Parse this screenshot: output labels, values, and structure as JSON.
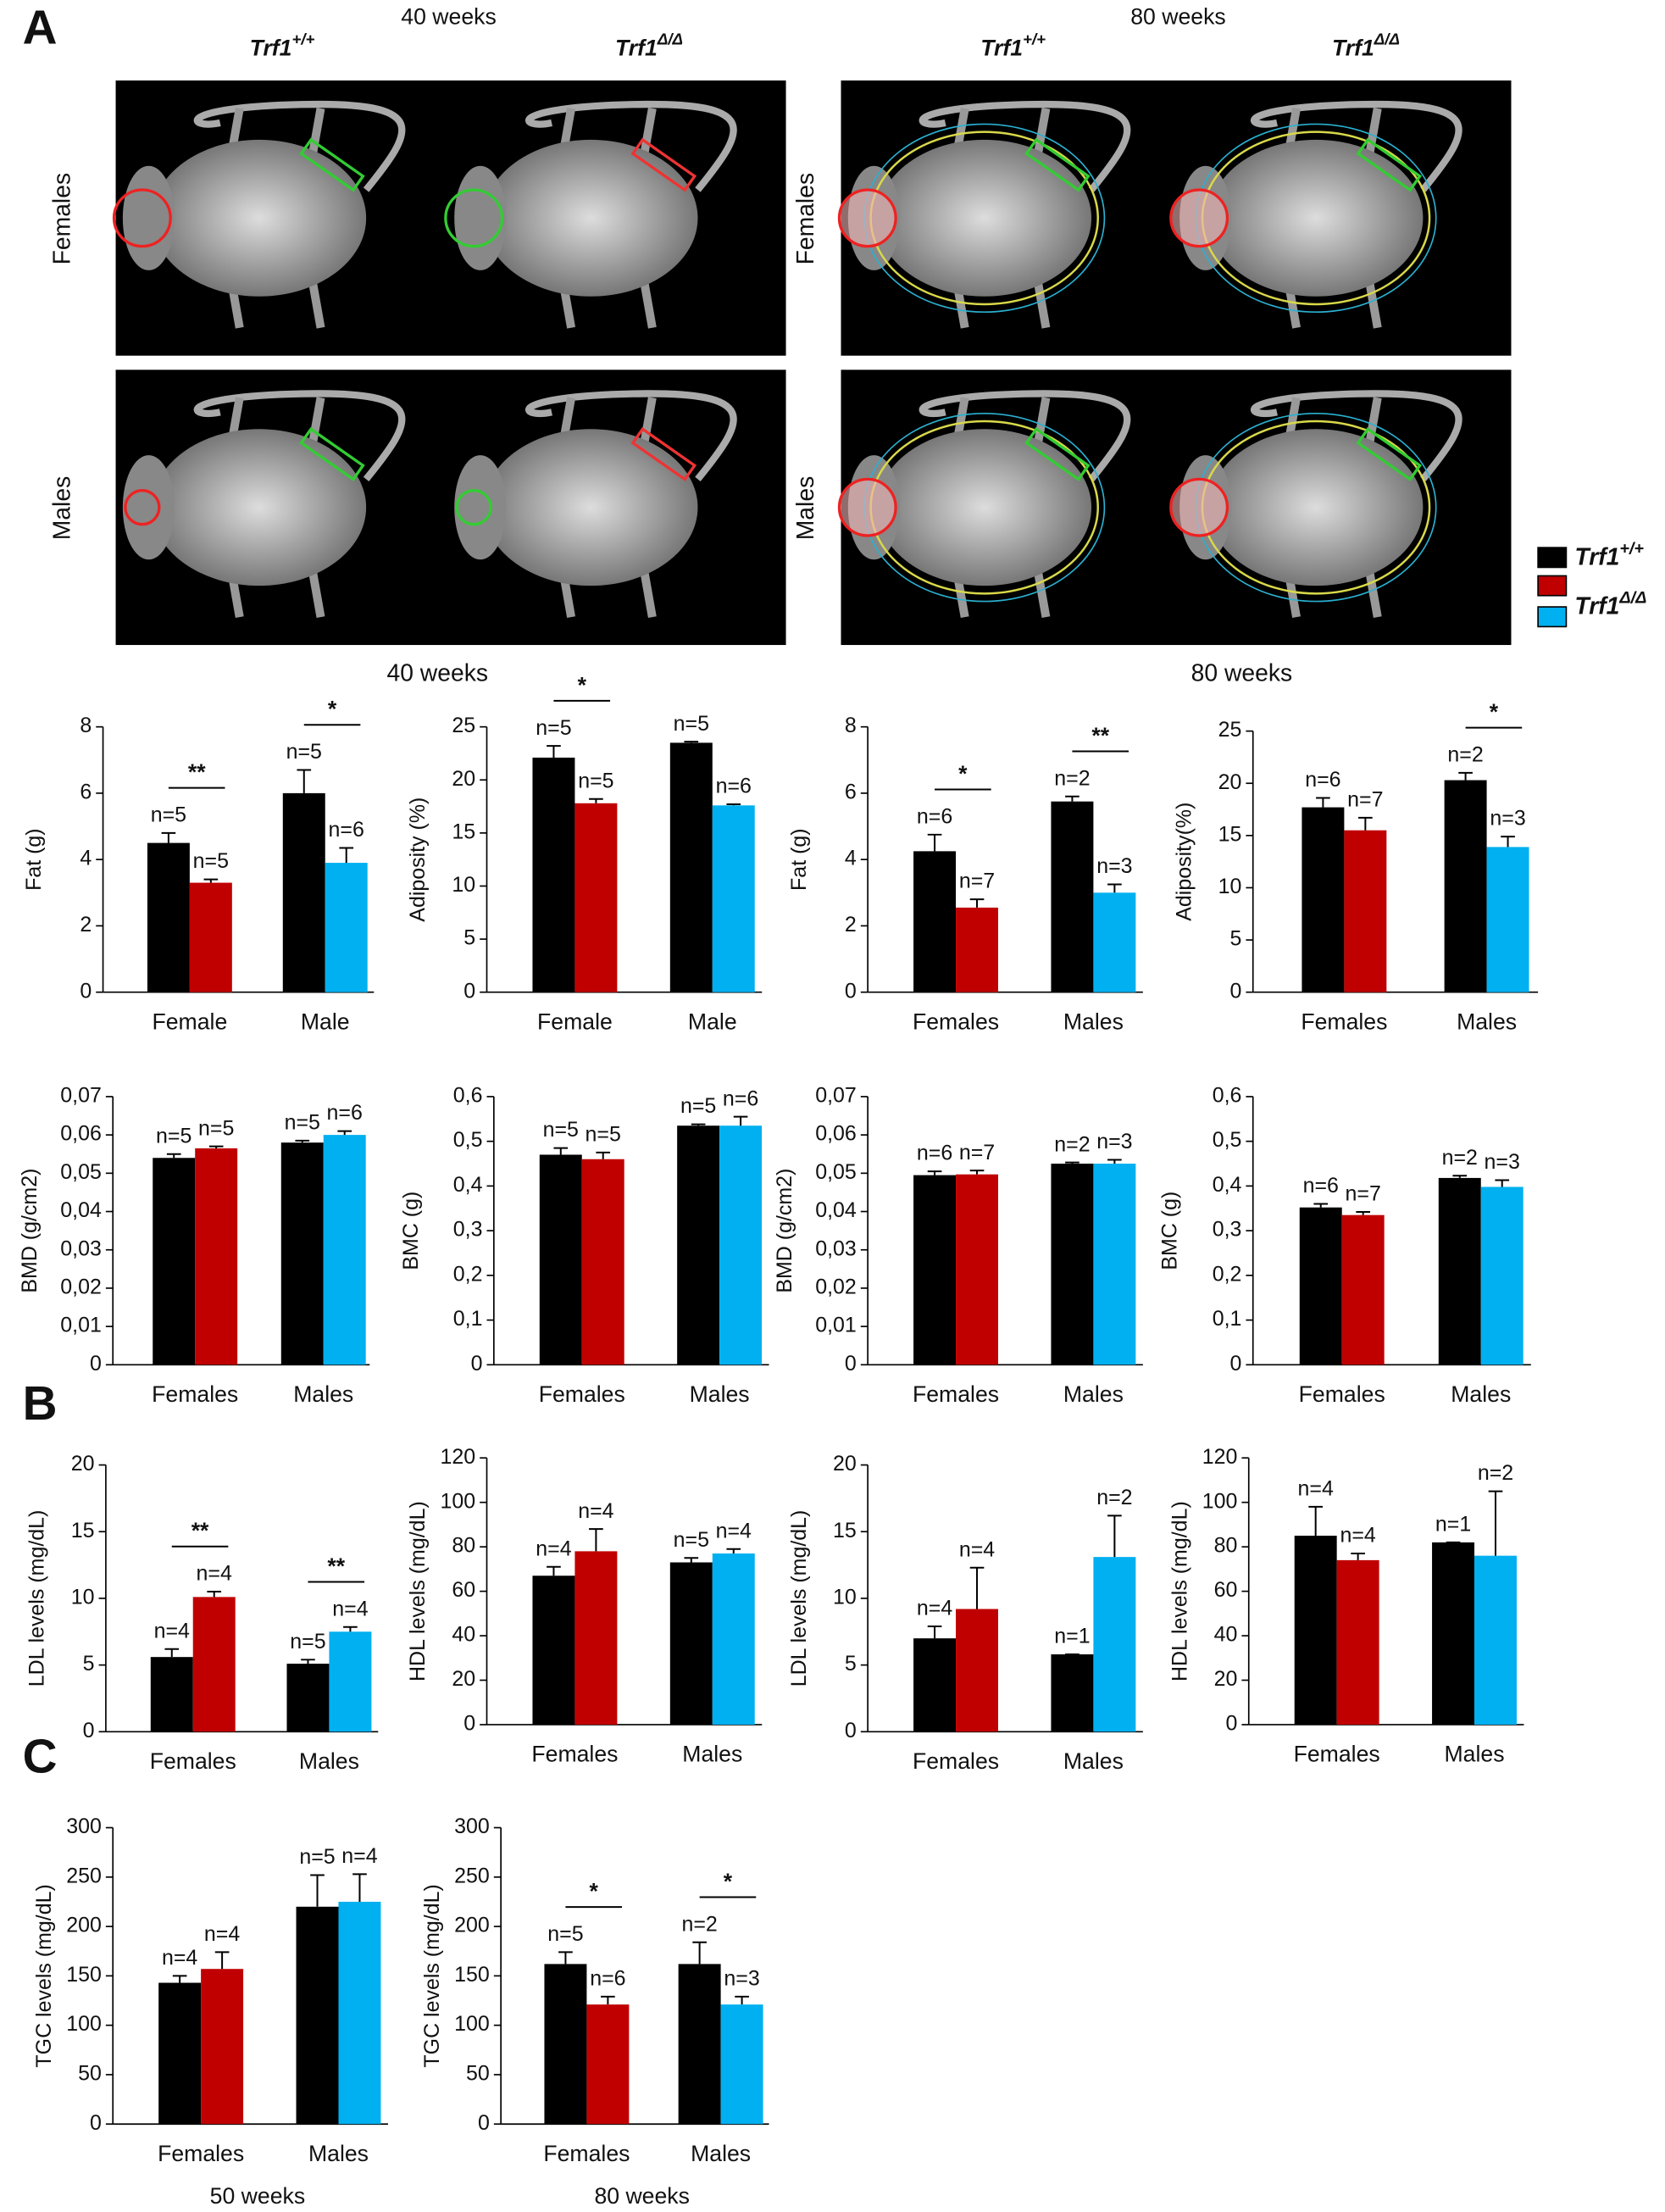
{
  "panel_labels": [
    "A",
    "B",
    "C"
  ],
  "images": {
    "ages": [
      "40 weeks",
      "80 weeks"
    ],
    "genotypes": [
      {
        "gene": "Trf1",
        "genotype": "+/+"
      },
      {
        "gene": "Trf1",
        "genotype": "Δ/Δ"
      }
    ],
    "rows": [
      "Females",
      "Males"
    ]
  },
  "legend": [
    {
      "gene": "Trf1",
      "genotype": "+/+",
      "colors": [
        "#000000"
      ]
    },
    {
      "gene": "Trf1",
      "genotype": "Δ/Δ",
      "colors": [
        "#c00000",
        "#00b0f0"
      ]
    }
  ],
  "headers": [
    "40 weeks",
    "80 weeks"
  ],
  "chart_data": [
    {
      "type": "bar",
      "ylabel": "Fat (g)",
      "categories": [
        "Female",
        "Male"
      ],
      "ylim": [
        0,
        8
      ],
      "yticks": [
        0,
        2,
        4,
        6,
        8
      ],
      "series": [
        {
          "colors": [
            "#000000",
            "#000000"
          ],
          "values": [
            4.5,
            6.0
          ],
          "errors": [
            0.3,
            0.7
          ],
          "n_labels": [
            "n=5",
            "n=5"
          ]
        },
        {
          "colors": [
            "#c00000",
            "#00b0f0"
          ],
          "values": [
            3.3,
            3.9
          ],
          "errors": [
            0.1,
            0.45
          ],
          "n_labels": [
            "n=5",
            "n=6"
          ]
        }
      ],
      "significance": [
        {
          "category": 0,
          "label": "**"
        },
        {
          "category": 1,
          "label": "*"
        }
      ]
    },
    {
      "type": "bar",
      "ylabel": "Adiposity (%)",
      "categories": [
        "Female",
        "Male"
      ],
      "ylim": [
        0,
        25
      ],
      "yticks": [
        0,
        5,
        10,
        15,
        20,
        25
      ],
      "series": [
        {
          "colors": [
            "#000000",
            "#000000"
          ],
          "values": [
            22.1,
            23.5
          ],
          "errors": [
            1.1,
            0.1
          ],
          "n_labels": [
            "n=5",
            "n=5"
          ]
        },
        {
          "colors": [
            "#c00000",
            "#00b0f0"
          ],
          "values": [
            17.8,
            17.6
          ],
          "errors": [
            0.4,
            0.1
          ],
          "n_labels": [
            "n=5",
            "n=6"
          ]
        }
      ],
      "significance": [
        {
          "category": 0,
          "label": "*"
        }
      ]
    },
    {
      "type": "bar",
      "ylabel": "Fat (g)",
      "categories": [
        "Females",
        "Males"
      ],
      "ylim": [
        0,
        8
      ],
      "yticks": [
        0,
        2,
        4,
        6,
        8
      ],
      "series": [
        {
          "colors": [
            "#000000",
            "#000000"
          ],
          "values": [
            4.25,
            5.75
          ],
          "errors": [
            0.5,
            0.15
          ],
          "n_labels": [
            "n=6",
            "n=2"
          ]
        },
        {
          "colors": [
            "#c00000",
            "#00b0f0"
          ],
          "values": [
            2.55,
            3.0
          ],
          "errors": [
            0.25,
            0.25
          ],
          "n_labels": [
            "n=7",
            "n=3"
          ]
        }
      ],
      "significance": [
        {
          "category": 0,
          "label": "*"
        },
        {
          "category": 1,
          "label": "**"
        }
      ]
    },
    {
      "type": "bar",
      "ylabel": "Adiposity(%)",
      "categories": [
        "Females",
        "Males"
      ],
      "ylim": [
        0,
        25
      ],
      "yticks": [
        0,
        5,
        10,
        15,
        20,
        25
      ],
      "series": [
        {
          "colors": [
            "#000000",
            "#000000"
          ],
          "values": [
            17.7,
            20.3
          ],
          "errors": [
            0.9,
            0.7
          ],
          "n_labels": [
            "n=6",
            "n=2"
          ]
        },
        {
          "colors": [
            "#c00000",
            "#00b0f0"
          ],
          "values": [
            15.5,
            13.9
          ],
          "errors": [
            1.2,
            1.0
          ],
          "n_labels": [
            "n=7",
            "n=3"
          ]
        }
      ],
      "significance": [
        {
          "category": 1,
          "label": "*"
        }
      ]
    },
    {
      "type": "bar",
      "ylabel": "BMD (g/cm2)",
      "categories": [
        "Females",
        "Males"
      ],
      "ylim": [
        0,
        0.07
      ],
      "yticks": [
        0,
        {
          "value": 0.01,
          "label": "0,01"
        },
        {
          "value": 0.02,
          "label": "0,02"
        },
        {
          "value": 0.03,
          "label": "0,03"
        },
        {
          "value": 0.04,
          "label": "0,04"
        },
        {
          "value": 0.05,
          "label": "0,05"
        },
        {
          "value": 0.06,
          "label": "0,06"
        },
        {
          "value": 0.07,
          "label": "0,07"
        }
      ],
      "series": [
        {
          "colors": [
            "#000000",
            "#000000"
          ],
          "values": [
            0.054,
            0.058
          ],
          "errors": [
            0.001,
            0.0005
          ],
          "n_labels": [
            "n=5",
            "n=5"
          ]
        },
        {
          "colors": [
            "#c00000",
            "#00b0f0"
          ],
          "values": [
            0.0565,
            0.06
          ],
          "errors": [
            0.0005,
            0.001
          ],
          "n_labels": [
            "n=5",
            "n=6"
          ]
        }
      ]
    },
    {
      "type": "bar",
      "ylabel": "BMC (g)",
      "categories": [
        "Females",
        "Males"
      ],
      "ylim": [
        0,
        0.6
      ],
      "yticks": [
        0,
        {
          "value": 0.1,
          "label": "0,1"
        },
        {
          "value": 0.2,
          "label": "0,2"
        },
        {
          "value": 0.3,
          "label": "0,3"
        },
        {
          "value": 0.4,
          "label": "0,4"
        },
        {
          "value": 0.5,
          "label": "0,5"
        },
        {
          "value": 0.6,
          "label": "0,6"
        }
      ],
      "series": [
        {
          "colors": [
            "#000000",
            "#000000"
          ],
          "values": [
            0.47,
            0.535
          ],
          "errors": [
            0.015,
            0.003
          ],
          "n_labels": [
            "n=5",
            "n=5"
          ]
        },
        {
          "colors": [
            "#c00000",
            "#00b0f0"
          ],
          "values": [
            0.46,
            0.535
          ],
          "errors": [
            0.015,
            0.02
          ],
          "n_labels": [
            "n=5",
            "n=6"
          ]
        }
      ]
    },
    {
      "type": "bar",
      "ylabel": "BMD (g/cm2)",
      "categories": [
        "Females",
        "Males"
      ],
      "ylim": [
        0,
        0.07
      ],
      "yticks": [
        0,
        {
          "value": 0.01,
          "label": "0,01"
        },
        {
          "value": 0.02,
          "label": "0,02"
        },
        {
          "value": 0.03,
          "label": "0,03"
        },
        {
          "value": 0.04,
          "label": "0,04"
        },
        {
          "value": 0.05,
          "label": "0,05"
        },
        {
          "value": 0.06,
          "label": "0,06"
        },
        {
          "value": 0.07,
          "label": "0,07"
        }
      ],
      "series": [
        {
          "colors": [
            "#000000",
            "#000000"
          ],
          "values": [
            0.0495,
            0.0525
          ],
          "errors": [
            0.001,
            0.0003
          ],
          "n_labels": [
            "n=6",
            "n=2"
          ]
        },
        {
          "colors": [
            "#c00000",
            "#00b0f0"
          ],
          "values": [
            0.0497,
            0.0525
          ],
          "errors": [
            0.001,
            0.001
          ],
          "n_labels": [
            "n=7",
            "n=3"
          ]
        }
      ]
    },
    {
      "type": "bar",
      "ylabel": "BMC (g)",
      "categories": [
        "Females",
        "Males"
      ],
      "ylim": [
        0,
        0.6
      ],
      "yticks": [
        0,
        {
          "value": 0.1,
          "label": "0,1"
        },
        {
          "value": 0.2,
          "label": "0,2"
        },
        {
          "value": 0.3,
          "label": "0,3"
        },
        {
          "value": 0.4,
          "label": "0,4"
        },
        {
          "value": 0.5,
          "label": "0,5"
        },
        {
          "value": 0.6,
          "label": "0,6"
        }
      ],
      "series": [
        {
          "colors": [
            "#000000",
            "#000000"
          ],
          "values": [
            0.352,
            0.418
          ],
          "errors": [
            0.008,
            0.005
          ],
          "n_labels": [
            "n=6",
            "n=2"
          ]
        },
        {
          "colors": [
            "#c00000",
            "#00b0f0"
          ],
          "values": [
            0.335,
            0.398
          ],
          "errors": [
            0.007,
            0.015
          ],
          "n_labels": [
            "n=7",
            "n=3"
          ]
        }
      ]
    },
    {
      "type": "bar",
      "ylabel": "LDL levels (mg/dL)",
      "categories": [
        "Females",
        "Males"
      ],
      "ylim": [
        0,
        20
      ],
      "yticks": [
        0,
        5,
        10,
        15,
        20
      ],
      "series": [
        {
          "colors": [
            "#000000",
            "#000000"
          ],
          "values": [
            5.6,
            5.1
          ],
          "errors": [
            0.6,
            0.3
          ],
          "n_labels": [
            "n=4",
            "n=5"
          ]
        },
        {
          "colors": [
            "#c00000",
            "#00b0f0"
          ],
          "values": [
            10.1,
            7.5
          ],
          "errors": [
            0.4,
            0.35
          ],
          "n_labels": [
            "n=4",
            "n=4"
          ]
        }
      ],
      "significance": [
        {
          "category": 0,
          "label": "**"
        },
        {
          "category": 1,
          "label": "**"
        }
      ]
    },
    {
      "type": "bar",
      "ylabel": "HDL levels (mg/dL)",
      "categories": [
        "Females",
        "Males"
      ],
      "ylim": [
        0,
        120
      ],
      "yticks": [
        0,
        20,
        40,
        60,
        80,
        100,
        120
      ],
      "series": [
        {
          "colors": [
            "#000000",
            "#000000"
          ],
          "values": [
            67,
            73
          ],
          "errors": [
            4,
            2
          ],
          "n_labels": [
            "n=4",
            "n=5"
          ]
        },
        {
          "colors": [
            "#c00000",
            "#00b0f0"
          ],
          "values": [
            78,
            77
          ],
          "errors": [
            10,
            2
          ],
          "n_labels": [
            "n=4",
            "n=4"
          ]
        }
      ]
    },
    {
      "type": "bar",
      "ylabel": "LDL levels (mg/dL)",
      "categories": [
        "Females",
        "Males"
      ],
      "ylim": [
        0,
        20
      ],
      "yticks": [
        0,
        5,
        10,
        15,
        20
      ],
      "series": [
        {
          "colors": [
            "#000000",
            "#000000"
          ],
          "values": [
            7,
            5.8
          ],
          "errors": [
            0.9,
            0
          ],
          "n_labels": [
            "n=4",
            "n=1"
          ]
        },
        {
          "colors": [
            "#c00000",
            "#00b0f0"
          ],
          "values": [
            9.2,
            13.1
          ],
          "errors": [
            3.1,
            3.1
          ],
          "n_labels": [
            "n=4",
            "n=2"
          ]
        }
      ]
    },
    {
      "type": "bar",
      "ylabel": "HDL levels (mg/dL)",
      "categories": [
        "Females",
        "Males"
      ],
      "ylim": [
        0,
        120
      ],
      "yticks": [
        0,
        20,
        40,
        60,
        80,
        100,
        120
      ],
      "series": [
        {
          "colors": [
            "#000000",
            "#000000"
          ],
          "values": [
            85,
            82
          ],
          "errors": [
            13,
            0
          ],
          "n_labels": [
            "n=4",
            "n=1"
          ]
        },
        {
          "colors": [
            "#c00000",
            "#00b0f0"
          ],
          "values": [
            74,
            76
          ],
          "errors": [
            3,
            29
          ],
          "n_labels": [
            "n=4",
            "n=2"
          ]
        }
      ]
    },
    {
      "type": "bar",
      "ylabel": "TGC levels (mg/dL)",
      "xlabel": "50 weeks",
      "categories": [
        "Females",
        "Males"
      ],
      "ylim": [
        0,
        300
      ],
      "yticks": [
        0,
        50,
        100,
        150,
        200,
        250,
        300
      ],
      "series": [
        {
          "colors": [
            "#000000",
            "#000000"
          ],
          "values": [
            143,
            220
          ],
          "errors": [
            7,
            32
          ],
          "n_labels": [
            "n=4",
            "n=5"
          ]
        },
        {
          "colors": [
            "#c00000",
            "#00b0f0"
          ],
          "values": [
            157,
            225
          ],
          "errors": [
            17,
            28
          ],
          "n_labels": [
            "n=4",
            "n=4"
          ]
        }
      ]
    },
    {
      "type": "bar",
      "ylabel": "TGC levels (mg/dL)",
      "xlabel": "80 weeks",
      "categories": [
        "Females",
        "Males"
      ],
      "ylim": [
        0,
        300
      ],
      "yticks": [
        0,
        50,
        100,
        150,
        200,
        250,
        300
      ],
      "series": [
        {
          "colors": [
            "#000000",
            "#000000"
          ],
          "values": [
            162,
            162
          ],
          "errors": [
            12,
            22
          ],
          "n_labels": [
            "n=5",
            "n=2"
          ]
        },
        {
          "colors": [
            "#c00000",
            "#00b0f0"
          ],
          "values": [
            121,
            121
          ],
          "errors": [
            8,
            8
          ],
          "n_labels": [
            "n=6",
            "n=3"
          ]
        }
      ],
      "significance": [
        {
          "category": 0,
          "label": "*"
        },
        {
          "category": 1,
          "label": "*"
        }
      ]
    }
  ]
}
